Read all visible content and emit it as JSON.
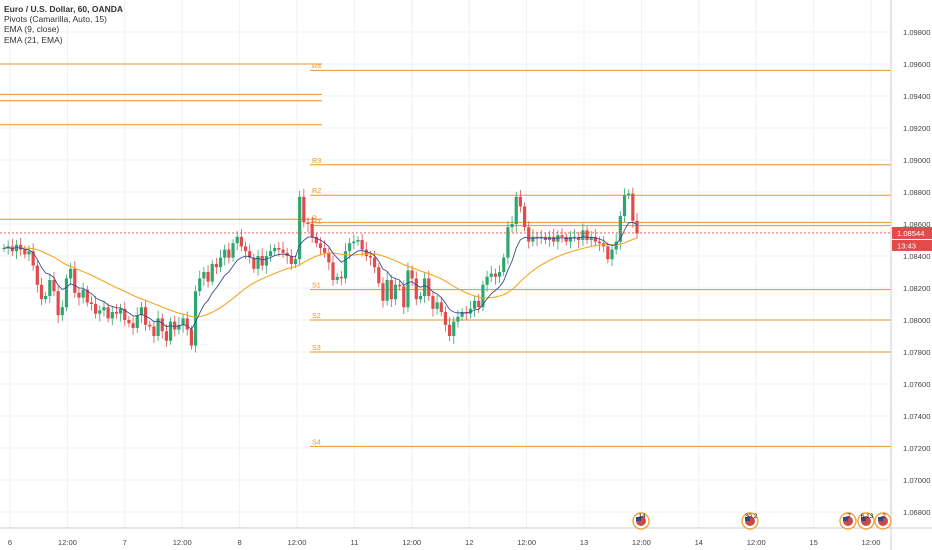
{
  "header": {
    "symbol": "Euro / U.S. Dollar, 60, OANDA",
    "indicators": [
      "Pivots (Camarilla, Auto, 15)",
      "EMA (9, close)",
      "EMA (21, EMA)"
    ]
  },
  "colors": {
    "pivot": "#e8962a",
    "ema9": "#3a4a8f",
    "ema21": "#f5a623",
    "up": "#2ea66f",
    "down": "#e24b4b",
    "grid": "#eef0f3",
    "axis_text": "#444444",
    "price_badge": "#e24b4b"
  },
  "price_axis": {
    "min": 1.067,
    "max": 1.1,
    "ticks": [
      "1.09800",
      "1.09600",
      "1.09400",
      "1.09200",
      "1.09000",
      "1.08800",
      "1.08600",
      "1.08400",
      "1.08200",
      "1.08000",
      "1.07800",
      "1.07600",
      "1.07400",
      "1.07200",
      "1.07000",
      "1.06800"
    ]
  },
  "time_axis": {
    "labels": [
      "6",
      "12:00",
      "7",
      "12:00",
      "8",
      "12:00",
      "11",
      "12:00",
      "12",
      "12:00",
      "13",
      "12:00",
      "14",
      "12:00",
      "15",
      "12:00"
    ]
  },
  "last_price": {
    "value": "1.08544",
    "countdown": "13:43"
  },
  "events": [
    "14",
    "30",
    "2",
    "7",
    "6",
    "13",
    "2"
  ],
  "chart_data": {
    "type": "candlestick",
    "title": "Euro / U.S. Dollar, 60, OANDA",
    "price_range": [
      1.067,
      1.1
    ],
    "pivot_levels": [
      {
        "label": "R4",
        "value": 1.0956
      },
      {
        "label": "R3",
        "value": 1.0897
      },
      {
        "label": "R2",
        "value": 1.0878
      },
      {
        "label": "P",
        "value": 1.0861
      },
      {
        "label": "R1",
        "value": 1.0859
      },
      {
        "label": "S1",
        "value": 1.0819
      },
      {
        "label": "S2",
        "value": 1.08
      },
      {
        "label": "S3",
        "value": 1.078
      },
      {
        "label": "S4",
        "value": 1.0721
      }
    ],
    "prior_pivot_levels": [
      1.096,
      1.0941,
      1.0937,
      1.0922,
      1.0863
    ],
    "candles_close": [
      1.0845,
      1.0846,
      1.0843,
      1.0847,
      1.0844,
      1.0841,
      1.0843,
      1.0834,
      1.0822,
      1.0813,
      1.0815,
      1.0825,
      1.0818,
      1.0803,
      1.0808,
      1.0826,
      1.0832,
      1.0817,
      1.0814,
      1.0819,
      1.0811,
      1.081,
      1.0804,
      1.0806,
      1.0808,
      1.0801,
      1.0805,
      1.0804,
      1.0807,
      1.08,
      1.0798,
      1.0795,
      1.0803,
      1.0808,
      1.0797,
      1.0796,
      1.079,
      1.0801,
      1.0793,
      1.0787,
      1.0799,
      1.0794,
      1.0797,
      1.0801,
      1.0794,
      1.0784,
      1.0818,
      1.0826,
      1.083,
      1.0824,
      1.0835,
      1.0833,
      1.0839,
      1.0844,
      1.0839,
      1.0848,
      1.0852,
      1.0846,
      1.0843,
      1.0839,
      1.0832,
      1.084,
      1.0834,
      1.084,
      1.0843,
      1.0845,
      1.0844,
      1.0842,
      1.084,
      1.0835,
      1.0838,
      1.0877,
      1.0861,
      1.086,
      1.0852,
      1.0848,
      1.0845,
      1.0842,
      1.0836,
      1.0825,
      1.0827,
      1.0826,
      1.0843,
      1.0848,
      1.0849,
      1.085,
      1.0844,
      1.084,
      1.0839,
      1.0833,
      1.0823,
      1.0812,
      1.0825,
      1.0813,
      1.0822,
      1.0821,
      1.0808,
      1.0831,
      1.0826,
      1.0813,
      1.0815,
      1.0826,
      1.0815,
      1.0807,
      1.0811,
      1.0805,
      1.0797,
      1.079,
      1.0799,
      1.0802,
      1.0805,
      1.0804,
      1.0807,
      1.0812,
      1.0808,
      1.0822,
      1.0827,
      1.0829,
      1.0827,
      1.083,
      1.0839,
      1.0858,
      1.086,
      1.0877,
      1.0871,
      1.0858,
      1.0849,
      1.0852,
      1.0851,
      1.0852,
      1.085,
      1.0852,
      1.0849,
      1.0853,
      1.0852,
      1.0849,
      1.0852,
      1.0852,
      1.085,
      1.0856,
      1.085,
      1.0852,
      1.0849,
      1.0848,
      1.0846,
      1.0838,
      1.0844,
      1.0849,
      1.0865,
      1.0878,
      1.0879,
      1.0862,
      1.0854
    ],
    "ema9_hint": "computed from closes",
    "ema21_hint": "computed from ema9"
  }
}
